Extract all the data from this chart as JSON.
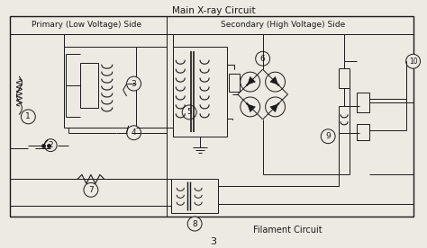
{
  "title": "Main X-ray Circuit",
  "subtitle_left": "Primary (Low Voltage) Side",
  "subtitle_right": "Secondary (High Voltage) Side",
  "bottom_label": "Filament Circuit",
  "page_number": "3",
  "bg_color": "#ede9e3",
  "line_color": "#1a1a1a",
  "text_color": "#1a1a1a",
  "figsize": [
    4.74,
    2.76
  ],
  "dpi": 100
}
